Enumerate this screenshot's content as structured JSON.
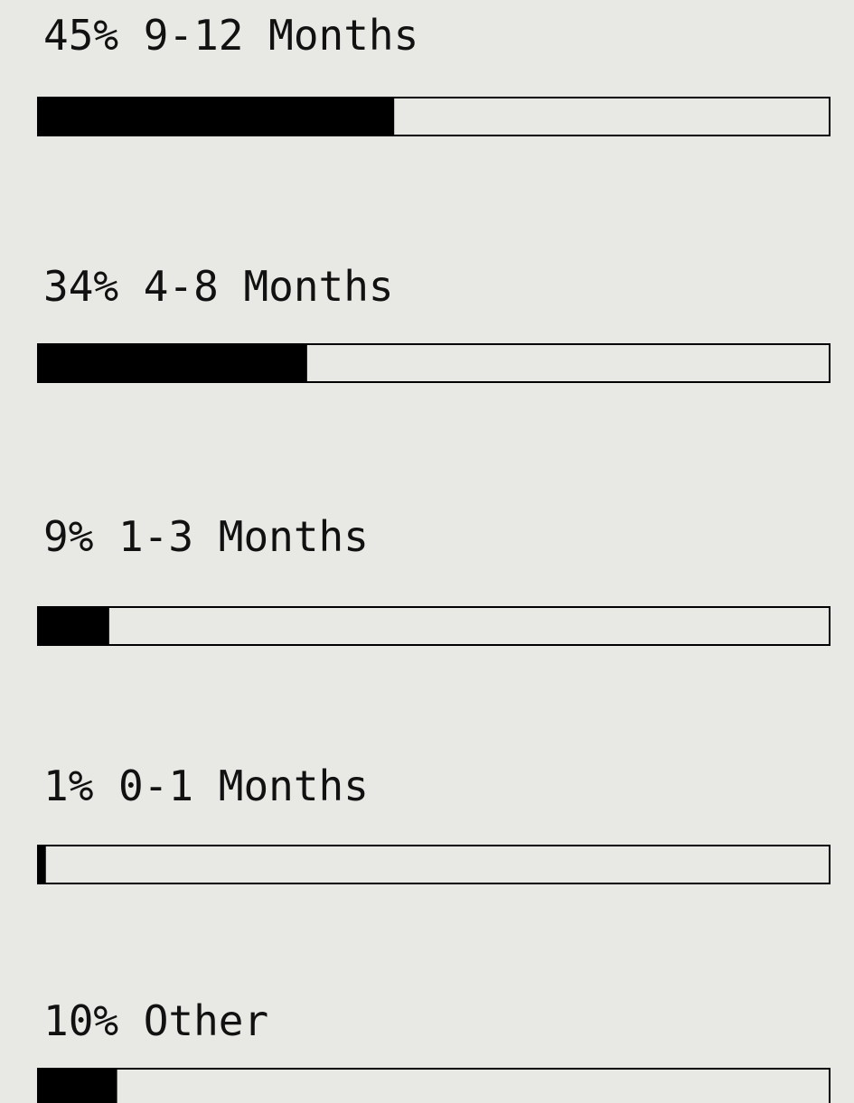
{
  "chart_data": {
    "type": "bar",
    "orientation": "horizontal",
    "categories": [
      "9-12 Months",
      "4-8 Months",
      "1-3 Months",
      "0-1 Months",
      "Other"
    ],
    "values": [
      45,
      34,
      9,
      1,
      10
    ],
    "value_labels": [
      "45%",
      "34%",
      "9%",
      "1%",
      "10%"
    ],
    "color": "#000000",
    "xlim": [
      0,
      100
    ]
  }
}
